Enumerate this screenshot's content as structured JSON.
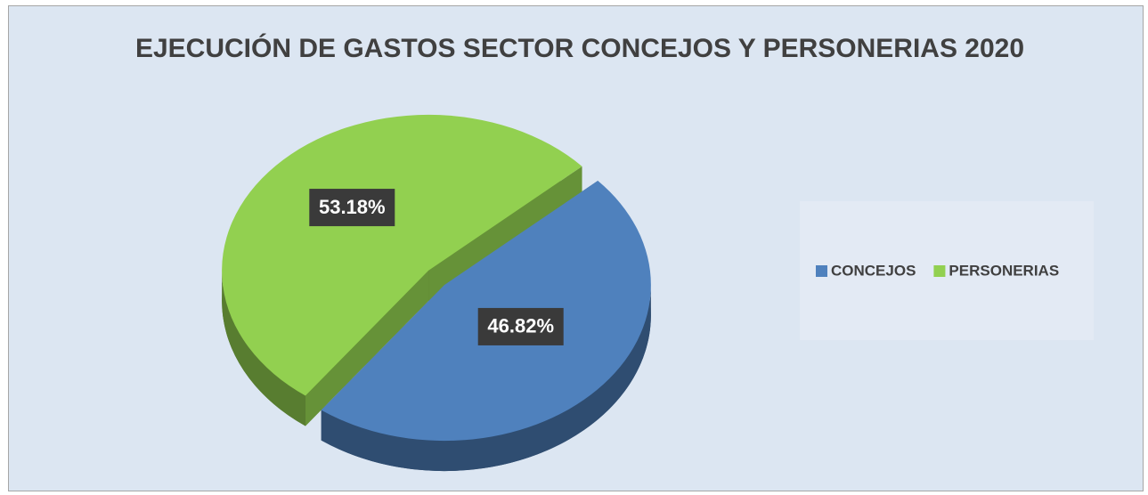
{
  "chart_data": {
    "type": "pie",
    "title": "EJECUCIÓN DE GASTOS SECTOR CONCEJOS Y PERSONERIAS 2020",
    "categories": [
      "CONCEJOS",
      "PERSONERIAS"
    ],
    "values": [
      46.82,
      53.18
    ],
    "value_labels": [
      "46.82%",
      "53.18%"
    ],
    "colors": [
      "#4f81bd",
      "#92d050"
    ],
    "legend": "right"
  }
}
